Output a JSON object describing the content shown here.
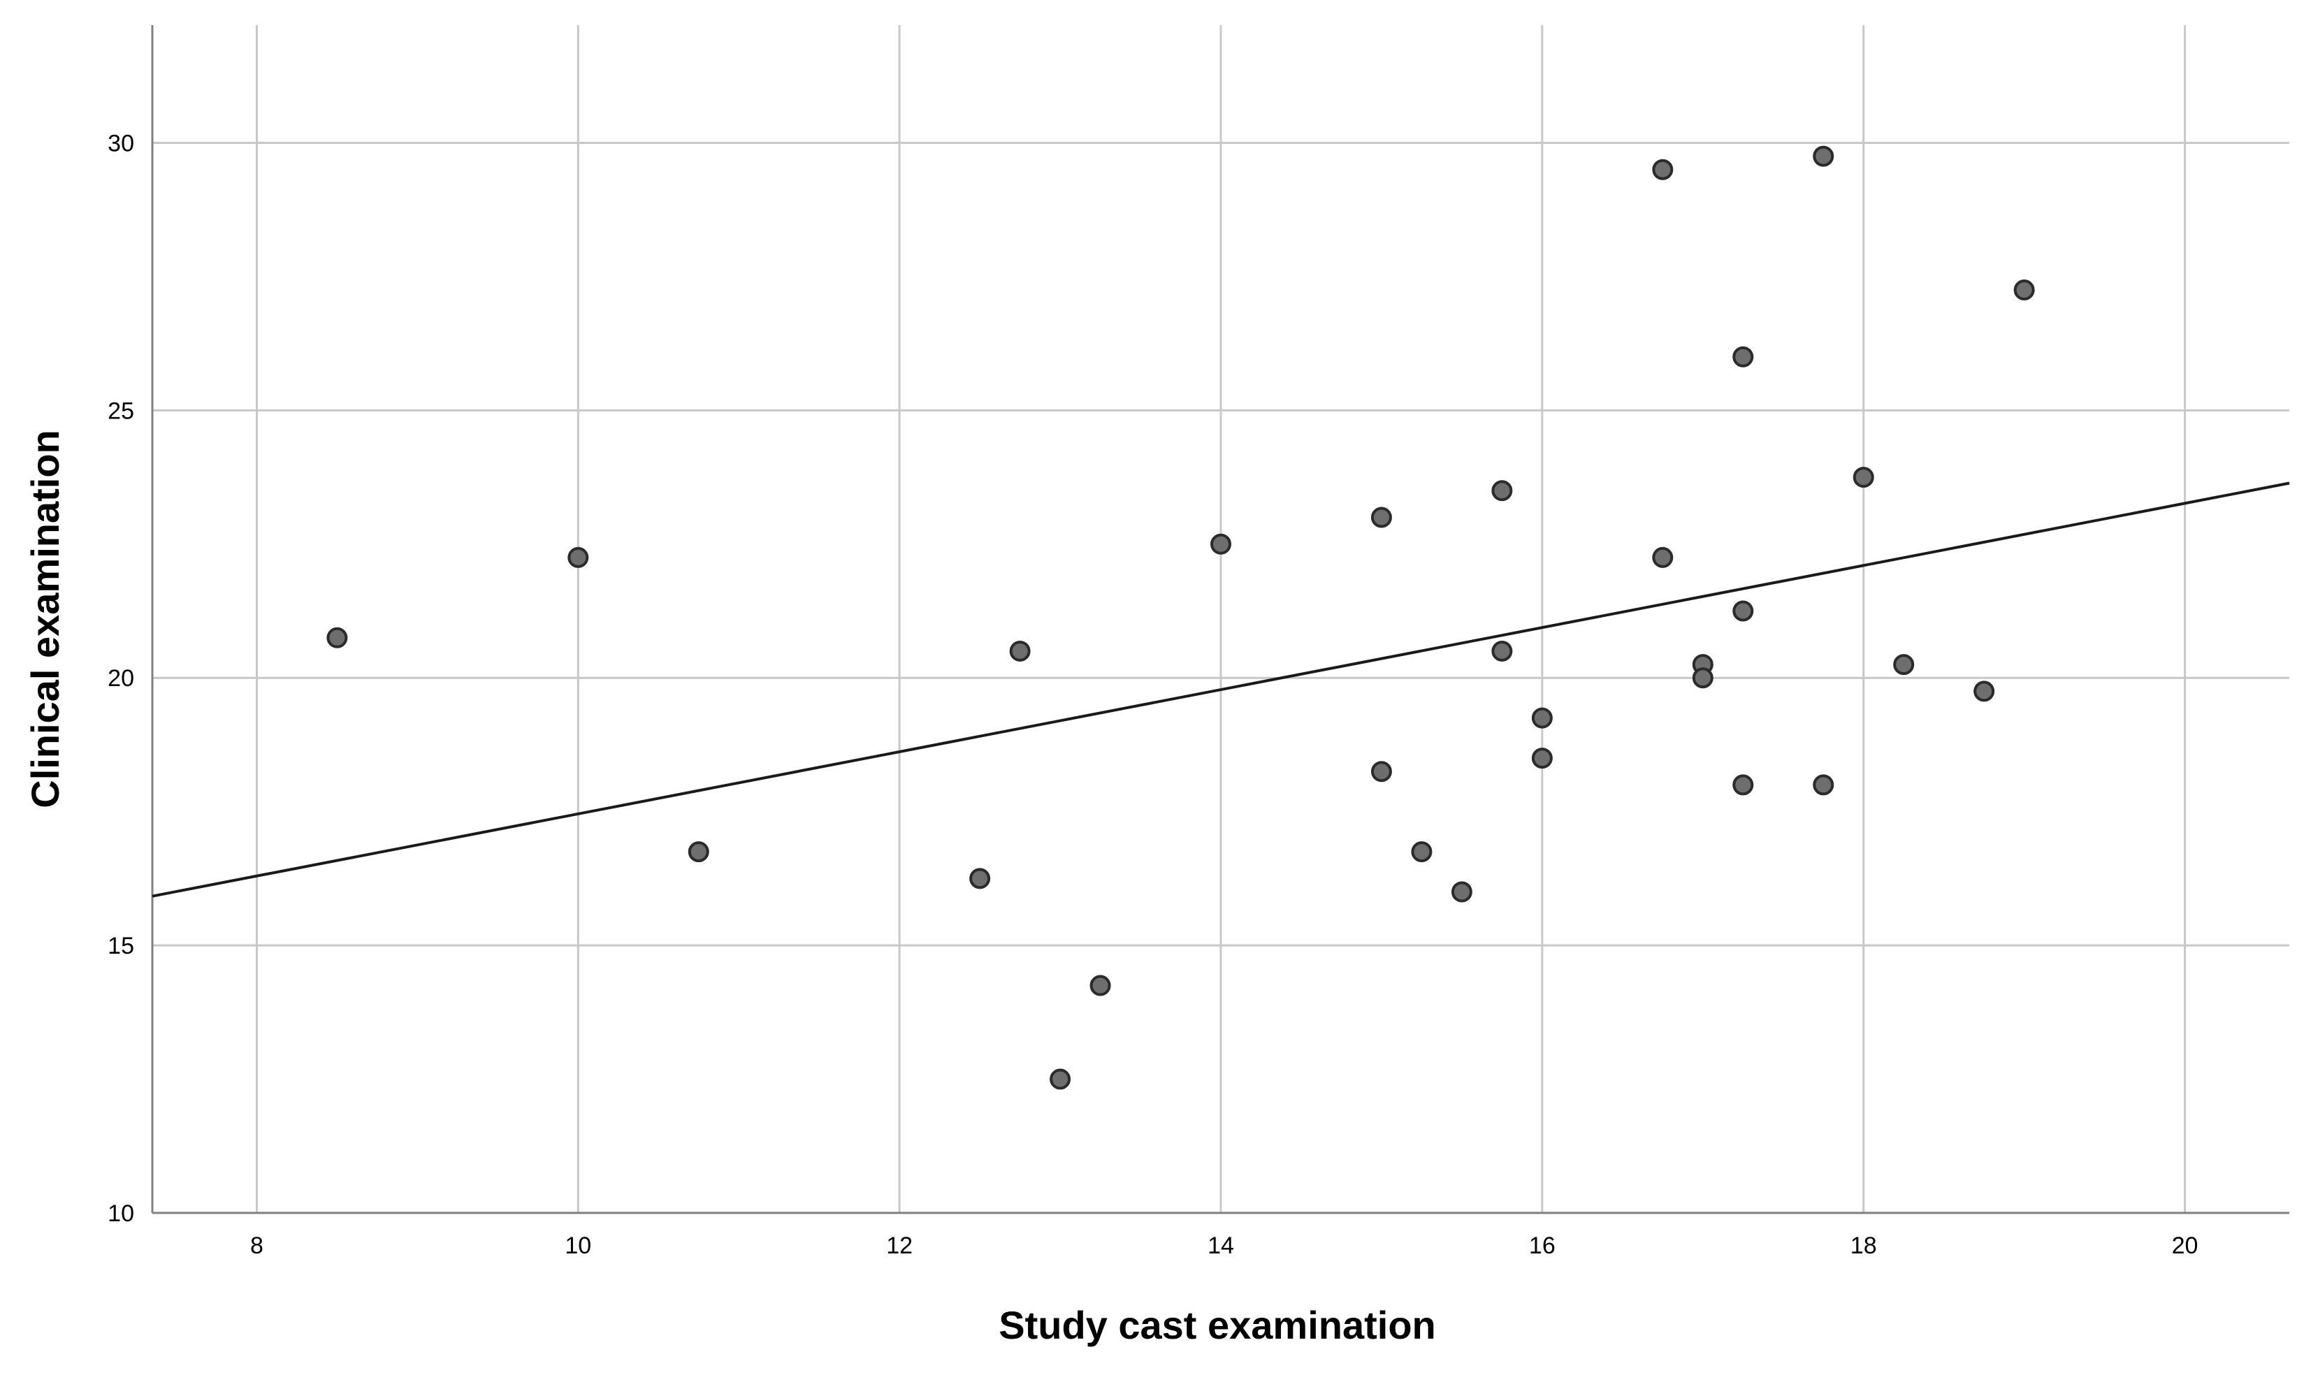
{
  "chart_data": {
    "type": "scatter",
    "title": "",
    "xlabel": "Study cast examination",
    "ylabel": "Clinical examination",
    "xlim": [
      7.35,
      20.65
    ],
    "ylim": [
      10,
      32.2
    ],
    "xticks": [
      8,
      10,
      12,
      14,
      16,
      18,
      20
    ],
    "yticks": [
      10,
      15,
      20,
      25,
      30
    ],
    "grid": true,
    "colors": {
      "point_fill": "#6e6e6e",
      "point_stroke": "#2b2b2b",
      "grid": "#c8c8c8",
      "fit_line": "#1a1a1a"
    },
    "points": [
      {
        "x": 8.5,
        "y": 20.75
      },
      {
        "x": 10.0,
        "y": 22.25
      },
      {
        "x": 10.75,
        "y": 16.75
      },
      {
        "x": 12.5,
        "y": 16.25
      },
      {
        "x": 12.75,
        "y": 20.5
      },
      {
        "x": 13.0,
        "y": 12.5
      },
      {
        "x": 13.25,
        "y": 14.25
      },
      {
        "x": 14.0,
        "y": 22.5
      },
      {
        "x": 15.0,
        "y": 23.0
      },
      {
        "x": 15.0,
        "y": 18.25
      },
      {
        "x": 15.25,
        "y": 16.75
      },
      {
        "x": 15.5,
        "y": 16.0
      },
      {
        "x": 15.75,
        "y": 23.5
      },
      {
        "x": 15.75,
        "y": 20.5
      },
      {
        "x": 16.0,
        "y": 19.25
      },
      {
        "x": 16.0,
        "y": 18.5
      },
      {
        "x": 16.75,
        "y": 29.5
      },
      {
        "x": 16.75,
        "y": 22.25
      },
      {
        "x": 17.0,
        "y": 20.25
      },
      {
        "x": 17.0,
        "y": 20.0
      },
      {
        "x": 17.25,
        "y": 26.0
      },
      {
        "x": 17.25,
        "y": 21.25
      },
      {
        "x": 17.25,
        "y": 18.0
      },
      {
        "x": 17.75,
        "y": 29.75
      },
      {
        "x": 17.75,
        "y": 18.0
      },
      {
        "x": 18.0,
        "y": 23.75
      },
      {
        "x": 18.25,
        "y": 20.25
      },
      {
        "x": 18.75,
        "y": 19.75
      },
      {
        "x": 19.0,
        "y": 27.25
      }
    ],
    "fit_line": {
      "type": "linear",
      "x": [
        7.35,
        20.65
      ],
      "y": [
        15.92,
        23.64
      ]
    }
  }
}
